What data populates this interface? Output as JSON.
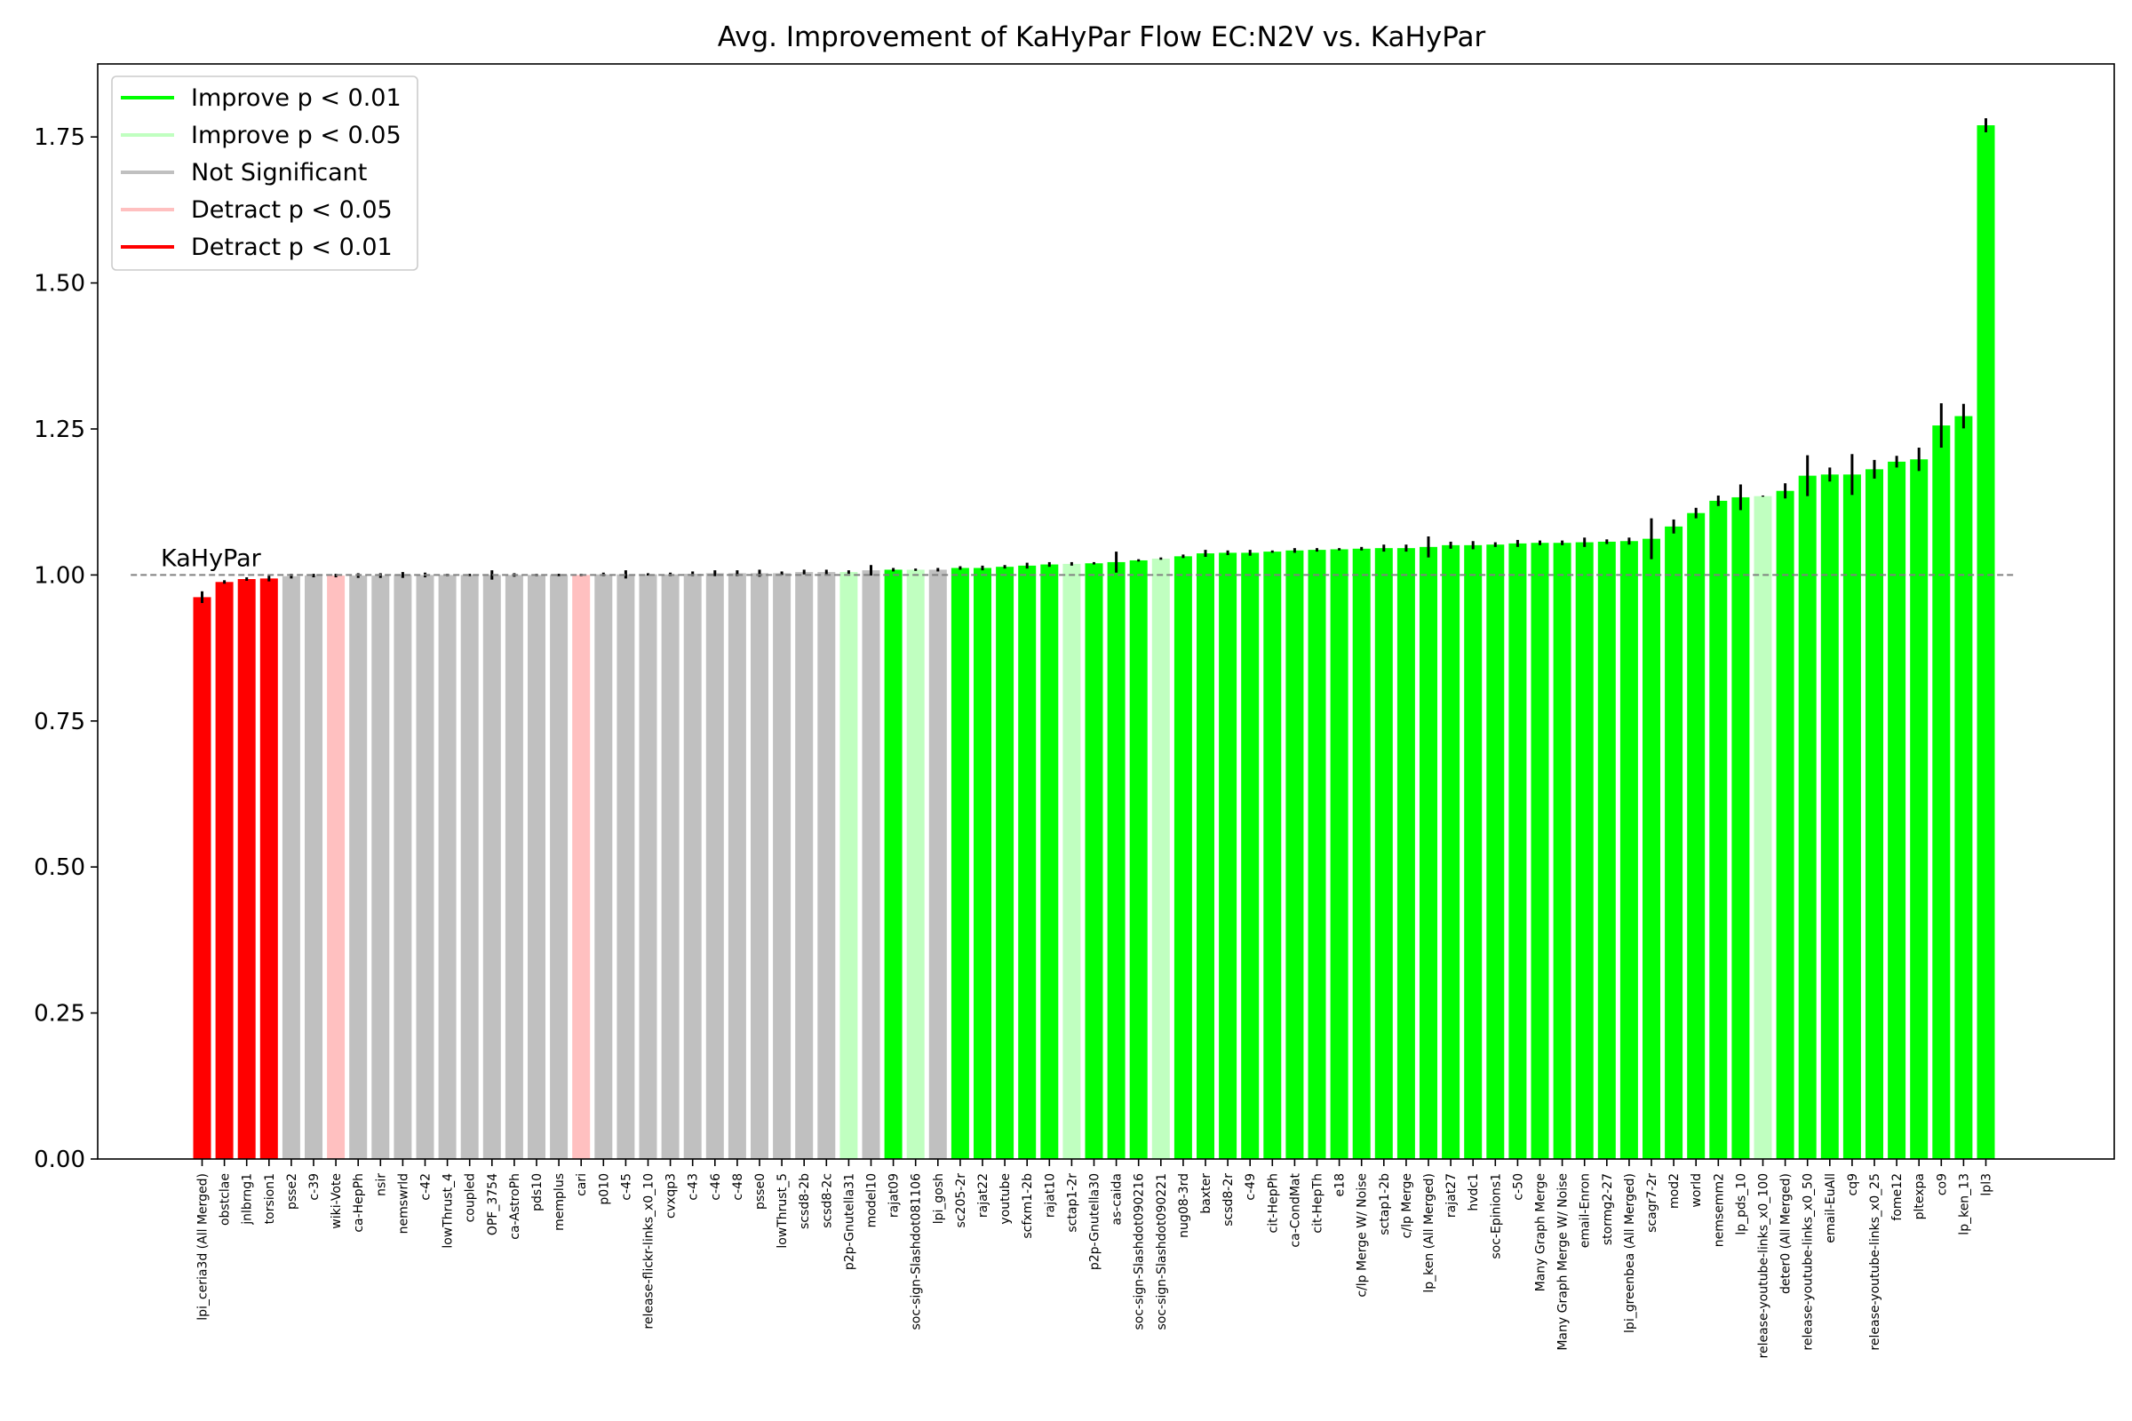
{
  "chart_data": {
    "type": "bar",
    "title": "Avg. Improvement of KaHyPar Flow EC:N2V vs. KaHyPar",
    "xlabel": "",
    "ylabel": "",
    "ylim": [
      0,
      1.875
    ],
    "yticks": [
      0.0,
      0.25,
      0.5,
      0.75,
      1.0,
      1.25,
      1.5,
      1.75
    ],
    "ytick_labels": [
      "0.00",
      "0.25",
      "0.50",
      "0.75",
      "1.00",
      "1.25",
      "1.50",
      "1.75"
    ],
    "baseline": {
      "value": 1.0,
      "label": "KaHyPar",
      "style": "dashed",
      "color": "#808080"
    },
    "grid": false,
    "legend": {
      "placement": "top-left",
      "entries": [
        {
          "label": "Improve p < 0.01",
          "color": "#00ff00"
        },
        {
          "label": "Improve p < 0.05",
          "color": "#c0ffc0"
        },
        {
          "label": "Not Significant",
          "color": "#c0c0c0"
        },
        {
          "label": "Detract p < 0.05",
          "color": "#ffc0c0"
        },
        {
          "label": "Detract p < 0.01",
          "color": "#ff0000"
        }
      ]
    },
    "categories": [
      "lpi_ceria3d (All Merged)",
      "obstclae",
      "jnlbrng1",
      "torsion1",
      "psse2",
      "c-39",
      "wiki-Vote",
      "ca-HepPh",
      "nsir",
      "nemswrld",
      "c-42",
      "lowThrust_4",
      "coupled",
      "OPF_3754",
      "ca-AstroPh",
      "pds10",
      "memplus",
      "cari",
      "p010",
      "c-45",
      "release-flickr-links_x0_10",
      "cvxqp3",
      "c-43",
      "c-46",
      "c-48",
      "psse0",
      "lowThrust_5",
      "scsd8-2b",
      "scsd8-2c",
      "p2p-Gnutella31",
      "model10",
      "rajat09",
      "soc-sign-Slashdot081106",
      "lpi_gosh",
      "sc205-2r",
      "rajat22",
      "youtube",
      "scfxm1-2b",
      "rajat10",
      "sctap1-2r",
      "p2p-Gnutella30",
      "as-caida",
      "soc-sign-Slashdot090216",
      "soc-sign-Slashdot090221",
      "nug08-3rd",
      "baxter",
      "scsd8-2r",
      "c-49",
      "cit-HepPh",
      "ca-CondMat",
      "cit-HepTh",
      "e18",
      "c/lp Merge W/ Noise",
      "sctap1-2b",
      "c/lp Merge",
      "lp_ken (All Merged)",
      "rajat27",
      "hvdc1",
      "soc-Epinions1",
      "c-50",
      "Many Graph Merge",
      "Many Graph Merge W/ Noise",
      "email-Enron",
      "stormg2-27",
      "lpi_greenbea (All Merged)",
      "scagr7-2r",
      "mod2",
      "world",
      "nemsemm2",
      "lp_pds_10",
      "release-youtube-links_x0_100",
      "deter0 (All Merged)",
      "release-youtube-links_x0_50",
      "email-EuAll",
      "cq9",
      "release-youtube-links_x0_25",
      "fome12",
      "pltexpa",
      "co9",
      "lp_ken_13",
      "lpl3"
    ],
    "values": [
      0.962,
      0.988,
      0.993,
      0.994,
      0.998,
      0.999,
      0.999,
      0.999,
      0.999,
      1.0,
      1.0,
      1.0,
      1.0,
      1.0,
      1.0,
      1.0,
      1.0,
      1.0,
      1.001,
      1.001,
      1.001,
      1.001,
      1.002,
      1.003,
      1.003,
      1.003,
      1.003,
      1.005,
      1.005,
      1.005,
      1.008,
      1.009,
      1.009,
      1.009,
      1.012,
      1.012,
      1.014,
      1.016,
      1.018,
      1.019,
      1.02,
      1.022,
      1.025,
      1.028,
      1.032,
      1.037,
      1.038,
      1.038,
      1.04,
      1.042,
      1.043,
      1.044,
      1.045,
      1.046,
      1.046,
      1.048,
      1.051,
      1.051,
      1.052,
      1.054,
      1.055,
      1.055,
      1.056,
      1.057,
      1.058,
      1.062,
      1.083,
      1.106,
      1.127,
      1.133,
      1.135,
      1.144,
      1.17,
      1.172,
      1.172,
      1.181,
      1.194,
      1.198,
      1.256,
      1.272,
      1.77
    ],
    "errors": [
      0.01,
      0.003,
      0.003,
      0.005,
      0.004,
      0.003,
      0.003,
      0.004,
      0.004,
      0.005,
      0.004,
      0.002,
      0.002,
      0.008,
      0.003,
      0.002,
      0.002,
      0.002,
      0.003,
      0.007,
      0.002,
      0.003,
      0.004,
      0.005,
      0.005,
      0.006,
      0.003,
      0.004,
      0.004,
      0.003,
      0.009,
      0.003,
      0.002,
      0.003,
      0.003,
      0.004,
      0.003,
      0.005,
      0.004,
      0.003,
      0.002,
      0.018,
      0.002,
      0.002,
      0.003,
      0.006,
      0.004,
      0.005,
      0.002,
      0.004,
      0.003,
      0.002,
      0.003,
      0.006,
      0.006,
      0.018,
      0.006,
      0.007,
      0.004,
      0.006,
      0.004,
      0.004,
      0.008,
      0.004,
      0.006,
      0.035,
      0.012,
      0.009,
      0.009,
      0.022,
      0.001,
      0.013,
      0.035,
      0.012,
      0.035,
      0.016,
      0.01,
      0.02,
      0.038,
      0.021,
      0.012
    ],
    "significance": [
      "detract_001",
      "detract_001",
      "detract_001",
      "detract_001",
      "not_significant",
      "not_significant",
      "detract_005",
      "not_significant",
      "not_significant",
      "not_significant",
      "not_significant",
      "not_significant",
      "not_significant",
      "not_significant",
      "not_significant",
      "not_significant",
      "not_significant",
      "detract_005",
      "not_significant",
      "not_significant",
      "not_significant",
      "not_significant",
      "not_significant",
      "not_significant",
      "not_significant",
      "not_significant",
      "not_significant",
      "not_significant",
      "not_significant",
      "improve_005",
      "not_significant",
      "improve_001",
      "improve_005",
      "not_significant",
      "improve_001",
      "improve_001",
      "improve_001",
      "improve_001",
      "improve_001",
      "improve_005",
      "improve_001",
      "improve_001",
      "improve_001",
      "improve_005",
      "improve_001",
      "improve_001",
      "improve_001",
      "improve_001",
      "improve_001",
      "improve_001",
      "improve_001",
      "improve_001",
      "improve_001",
      "improve_001",
      "improve_001",
      "improve_001",
      "improve_001",
      "improve_001",
      "improve_001",
      "improve_001",
      "improve_001",
      "improve_001",
      "improve_001",
      "improve_001",
      "improve_001",
      "improve_001",
      "improve_001",
      "improve_001",
      "improve_001",
      "improve_001",
      "improve_005",
      "improve_001",
      "improve_001",
      "improve_001",
      "improve_001",
      "improve_001",
      "improve_001",
      "improve_001",
      "improve_001",
      "improve_001",
      "improve_001"
    ],
    "colors": {
      "improve_001": "#00ff00",
      "improve_005": "#c0ffc0",
      "not_significant": "#c0c0c0",
      "detract_005": "#ffc0c0",
      "detract_001": "#ff0000",
      "error_bar": "#000000"
    }
  }
}
